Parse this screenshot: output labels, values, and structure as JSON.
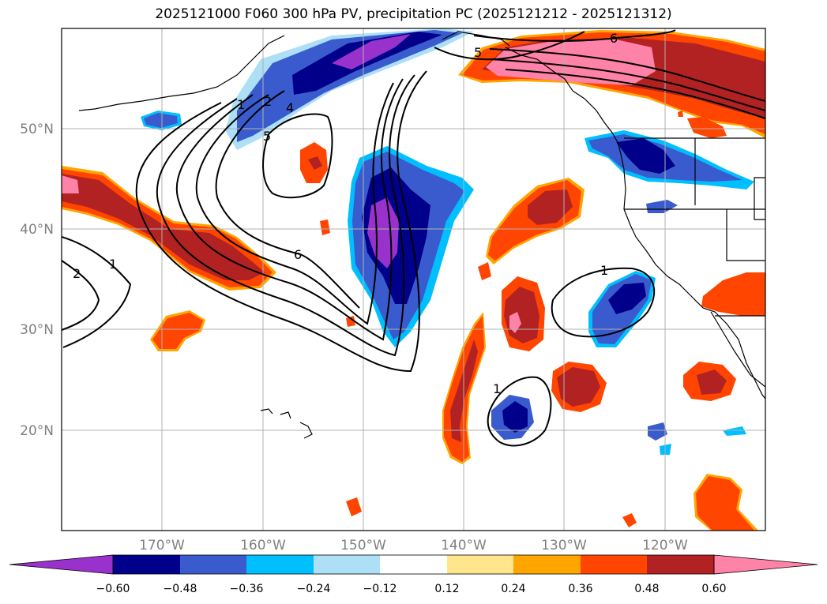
{
  "title": "2025121000 F060 300 hPa PV, precipitation PC (2025121212 - 2025121312)",
  "lat_ticks": [
    "50°N",
    "40°N",
    "30°N",
    "20°N"
  ],
  "lon_ticks": [
    "170°W",
    "160°W",
    "150°W",
    "140°W",
    "130°W",
    "120°W"
  ],
  "colorbar": {
    "tick_labels": [
      "−0.60",
      "−0.48",
      "−0.36",
      "−0.24",
      "−0.12",
      "0.12",
      "0.24",
      "0.36",
      "0.48",
      "0.60"
    ],
    "colors": [
      "#9932cc",
      "#00008b",
      "#3a5bcd",
      "#00bfff",
      "#ade0f7",
      "#ffffff",
      "#ffe68c",
      "#ffa500",
      "#ff4500",
      "#b22222",
      "#ff82a8"
    ]
  },
  "contour_labels": [
    "1",
    "2",
    "4",
    "5",
    "6",
    "5",
    "6",
    "1",
    "2",
    "1",
    "1"
  ],
  "chart_data": {
    "type": "contour-map",
    "region": "North-east Pacific / western North America",
    "shaded_field": "precipitation PC",
    "contour_field": "300 hPa PV",
    "lon_range": [
      -180,
      -110
    ],
    "lat_range": [
      10,
      60
    ],
    "colorbar_levels": [
      -0.6,
      -0.48,
      -0.36,
      -0.24,
      -0.12,
      0.12,
      0.24,
      0.36,
      0.48,
      0.6
    ],
    "colorbar_extend": "both",
    "contour_levels": [
      1,
      2,
      4,
      5,
      6
    ],
    "grid": true
  }
}
